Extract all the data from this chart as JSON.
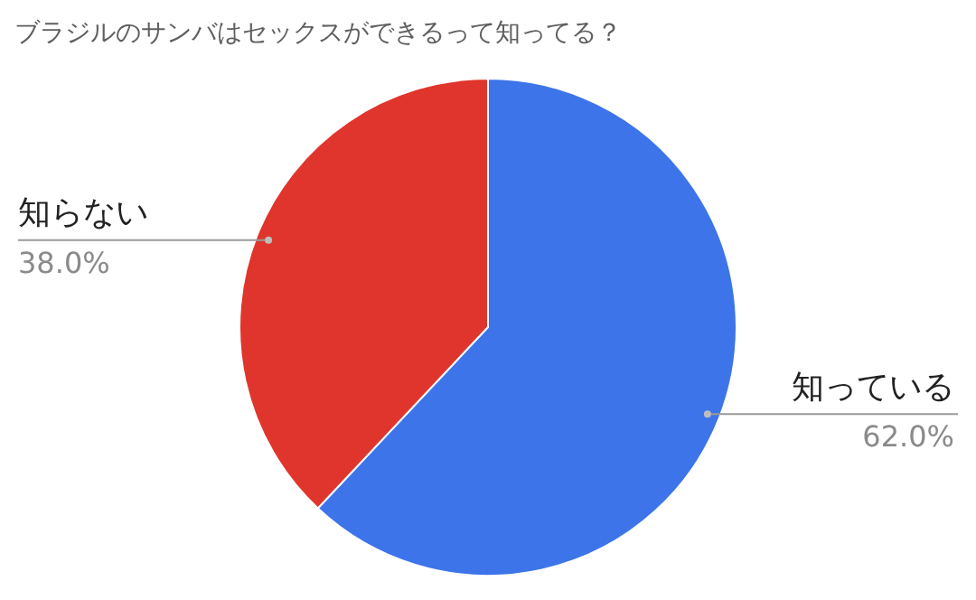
{
  "chart_data": {
    "type": "pie",
    "title": "ブラジルのサンバはセックスができるって知ってる？",
    "categories": [
      "知っている",
      "知らない"
    ],
    "values": [
      62,
      38
    ],
    "value_labels": [
      "62.0%",
      "38.0%"
    ],
    "colors": [
      "#3d74ea",
      "#e0352c"
    ],
    "legend": false
  }
}
